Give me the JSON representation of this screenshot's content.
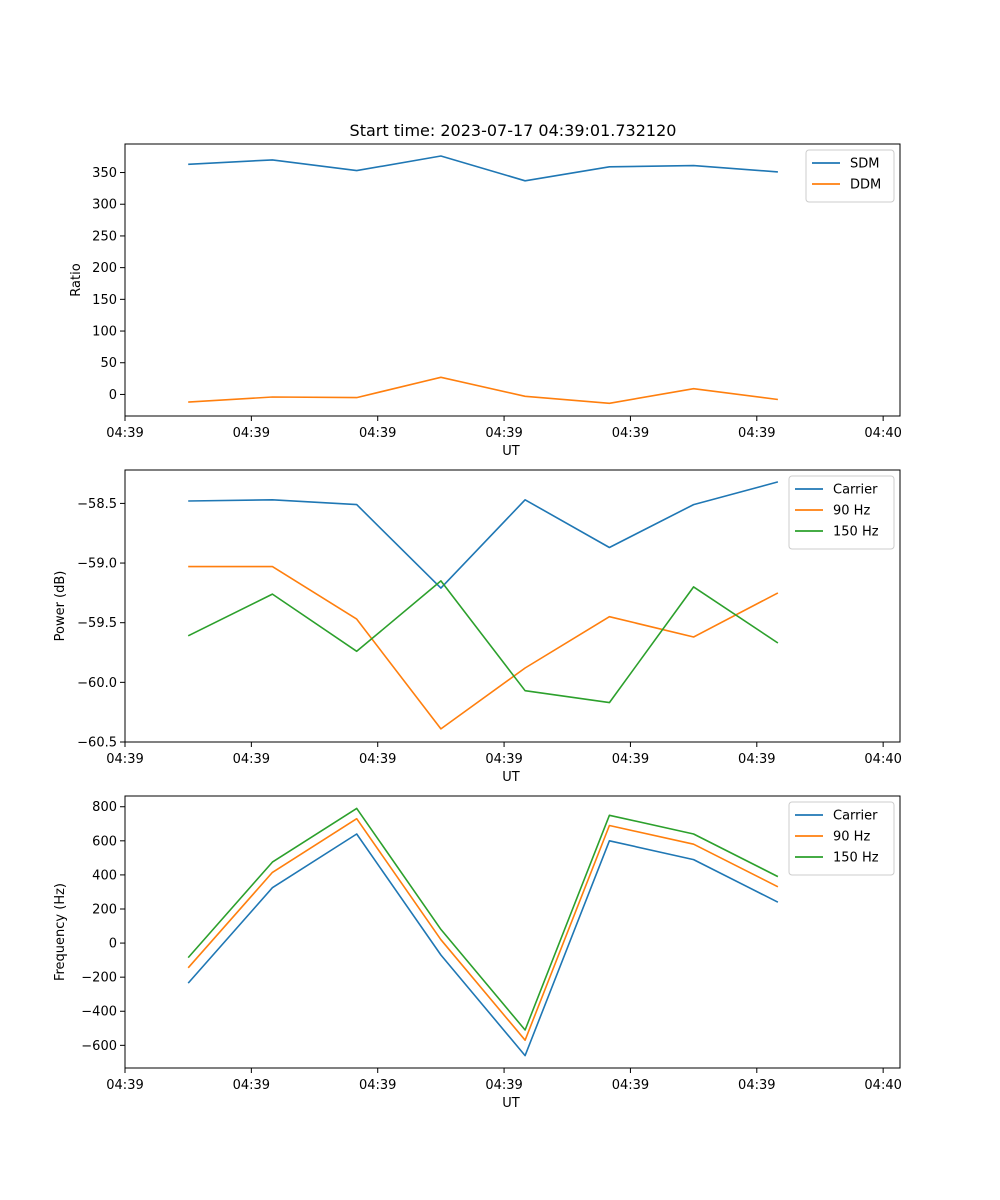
{
  "figure_title": "Start time: 2023-07-17 04:39:01.732120",
  "chart_data": [
    {
      "type": "line",
      "title": "Start time: 2023-07-17 04:39:01.732120",
      "xlabel": "UT",
      "ylabel": "Ratio",
      "xlim": [
        0,
        9.2
      ],
      "ylim": [
        -34,
        395
      ],
      "x": [
        0.75,
        1.75,
        2.75,
        3.75,
        4.75,
        5.75,
        6.75,
        7.75
      ],
      "xticks": [
        0,
        1.5,
        3.0,
        4.5,
        6.0,
        7.5,
        9.0
      ],
      "xtick_labels": [
        "04:39",
        "04:39",
        "04:39",
        "04:39",
        "04:39",
        "04:39",
        "04:40"
      ],
      "yticks": [
        0,
        50,
        100,
        150,
        200,
        250,
        300,
        350
      ],
      "ytick_labels": [
        "0",
        "50",
        "100",
        "150",
        "200",
        "250",
        "300",
        "350"
      ],
      "legend_position": "top-right",
      "series": [
        {
          "name": "SDM",
          "color": "#1f77b4",
          "values": [
            363,
            370,
            353,
            376,
            337,
            359,
            361,
            351
          ]
        },
        {
          "name": "DDM",
          "color": "#ff7f0e",
          "values": [
            -12,
            -4,
            -5,
            27,
            -3,
            -14,
            9,
            -8
          ]
        }
      ]
    },
    {
      "type": "line",
      "xlabel": "UT",
      "ylabel": "Power (dB)",
      "xlim": [
        0,
        9.2
      ],
      "ylim": [
        -60.5,
        -58.22
      ],
      "x": [
        0.75,
        1.75,
        2.75,
        3.75,
        4.75,
        5.75,
        6.75,
        7.75
      ],
      "xticks": [
        0,
        1.5,
        3.0,
        4.5,
        6.0,
        7.5,
        9.0
      ],
      "xtick_labels": [
        "04:39",
        "04:39",
        "04:39",
        "04:39",
        "04:39",
        "04:39",
        "04:40"
      ],
      "yticks": [
        -60.5,
        -60.0,
        -59.5,
        -59.0,
        -58.5
      ],
      "ytick_labels": [
        "−60.5",
        "−60.0",
        "−59.5",
        "−59.0",
        "−58.5"
      ],
      "legend_position": "top-right",
      "series": [
        {
          "name": "Carrier",
          "color": "#1f77b4",
          "values": [
            -58.48,
            -58.47,
            -58.51,
            -59.21,
            -58.47,
            -58.87,
            -58.51,
            -58.32
          ]
        },
        {
          "name": "90 Hz",
          "color": "#ff7f0e",
          "values": [
            -59.03,
            -59.03,
            -59.47,
            -60.39,
            -59.88,
            -59.45,
            -59.62,
            -59.25
          ]
        },
        {
          "name": "150 Hz",
          "color": "#2ca02c",
          "values": [
            -59.61,
            -59.26,
            -59.74,
            -59.15,
            -60.07,
            -60.17,
            -59.2,
            -59.67
          ]
        }
      ]
    },
    {
      "type": "line",
      "xlabel": "UT",
      "ylabel": "Frequency (Hz)",
      "xlim": [
        0,
        9.2
      ],
      "ylim": [
        -733,
        863
      ],
      "x": [
        0.75,
        1.75,
        2.75,
        3.75,
        4.75,
        5.75,
        6.75,
        7.75
      ],
      "xticks": [
        0,
        1.5,
        3.0,
        4.5,
        6.0,
        7.5,
        9.0
      ],
      "xtick_labels": [
        "04:39",
        "04:39",
        "04:39",
        "04:39",
        "04:39",
        "04:39",
        "04:40"
      ],
      "yticks": [
        -600,
        -400,
        -200,
        0,
        200,
        400,
        600,
        800
      ],
      "ytick_labels": [
        "−600",
        "−400",
        "−200",
        "0",
        "200",
        "400",
        "600",
        "800"
      ],
      "legend_position": "top-right",
      "series": [
        {
          "name": "Carrier",
          "color": "#1f77b4",
          "values": [
            -235,
            325,
            640,
            -70,
            -660,
            600,
            490,
            240
          ]
        },
        {
          "name": "90 Hz",
          "color": "#ff7f0e",
          "values": [
            -145,
            415,
            730,
            20,
            -570,
            690,
            580,
            330
          ]
        },
        {
          "name": "150 Hz",
          "color": "#2ca02c",
          "values": [
            -85,
            475,
            790,
            80,
            -510,
            750,
            640,
            390
          ]
        }
      ]
    }
  ]
}
